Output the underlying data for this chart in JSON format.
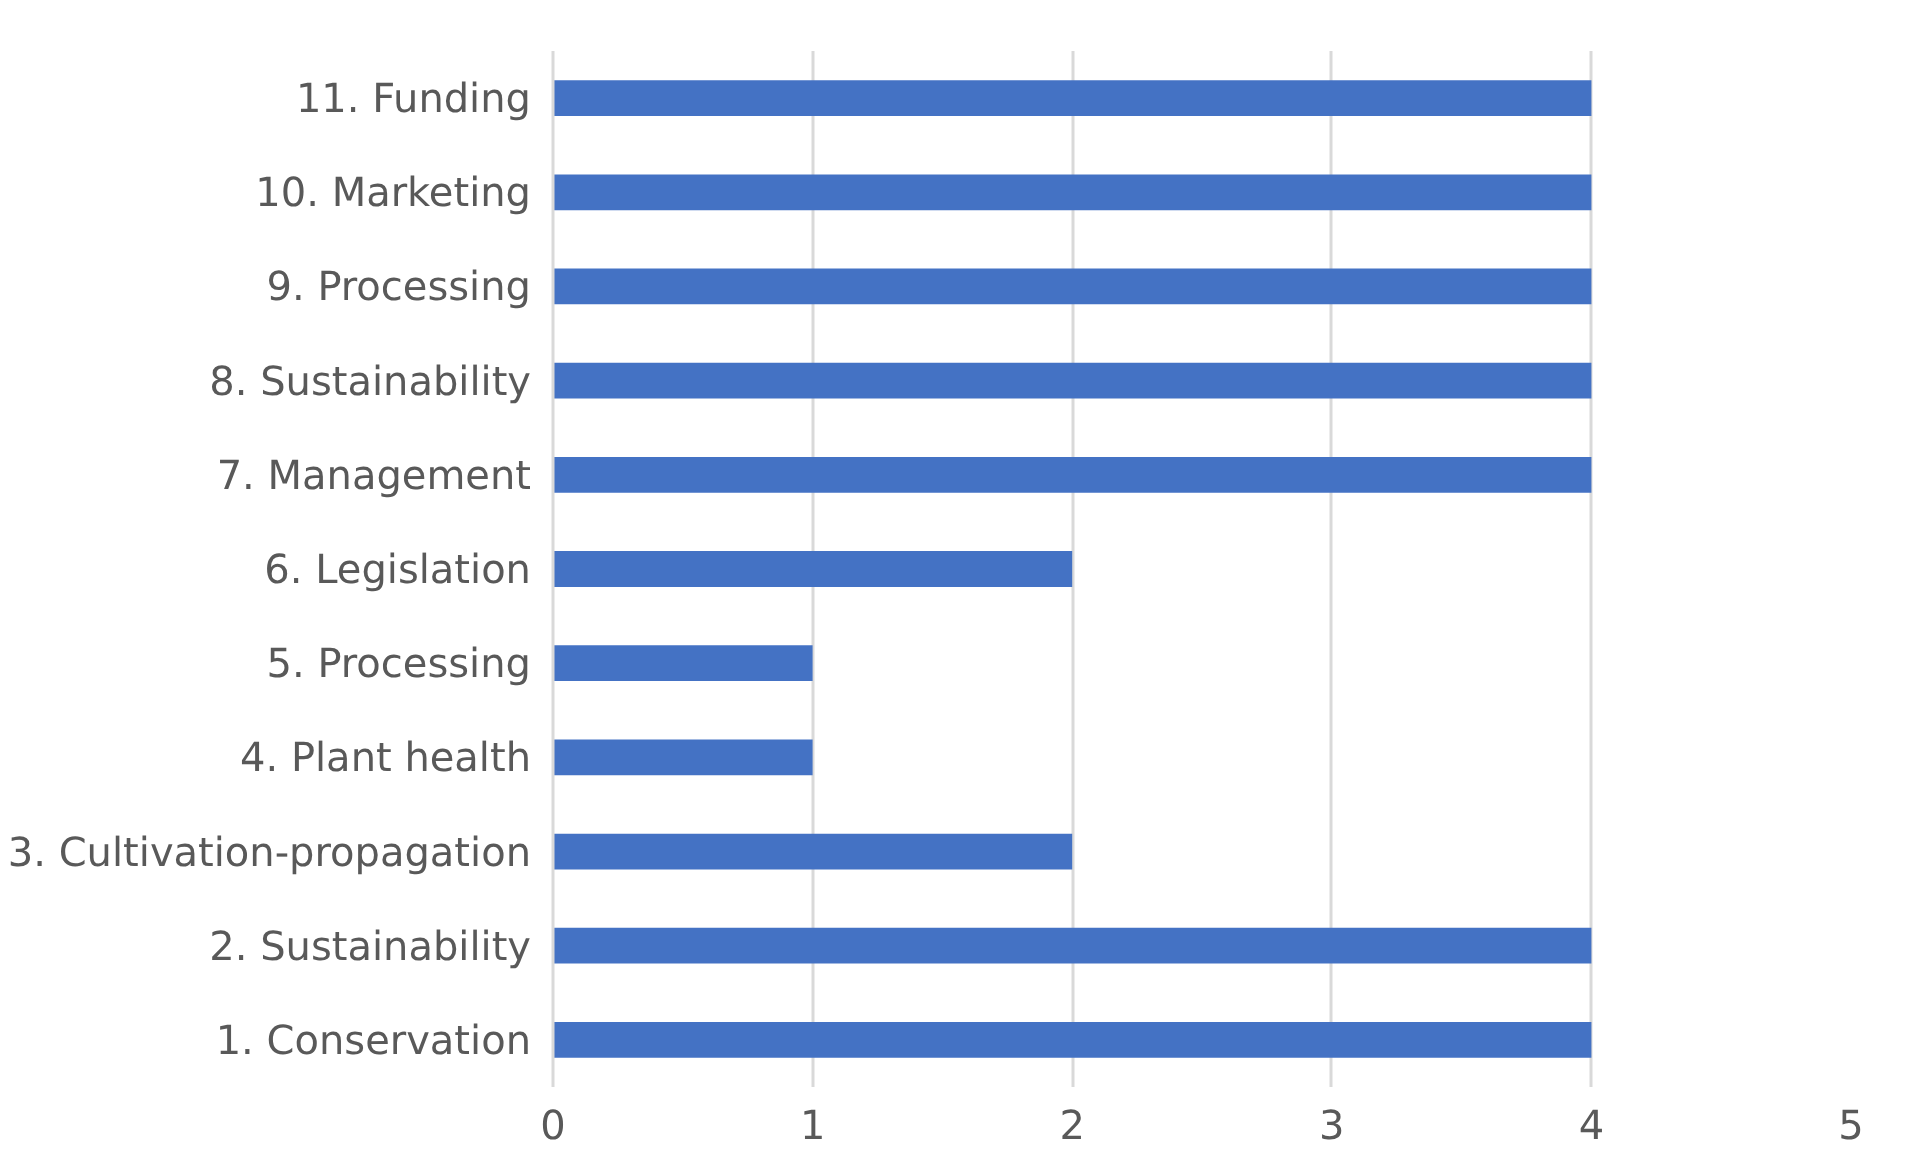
{
  "chart_data": {
    "type": "bar",
    "orientation": "horizontal",
    "categories": [
      "11. Funding",
      "10. Marketing",
      "9. Processing",
      "8. Sustainability",
      "7. Management",
      "6. Legislation",
      "5. Processing",
      "4. Plant health",
      "3. Cultivation-propagation",
      "2. Sustainability",
      "1. Conservation"
    ],
    "values": [
      4,
      4,
      4,
      4,
      4,
      2,
      1,
      1,
      2,
      4,
      4
    ],
    "color": "#4472c4",
    "xlim": [
      0,
      5
    ],
    "xticks": [
      0,
      1,
      2,
      3,
      4,
      5
    ],
    "grid": "x"
  }
}
